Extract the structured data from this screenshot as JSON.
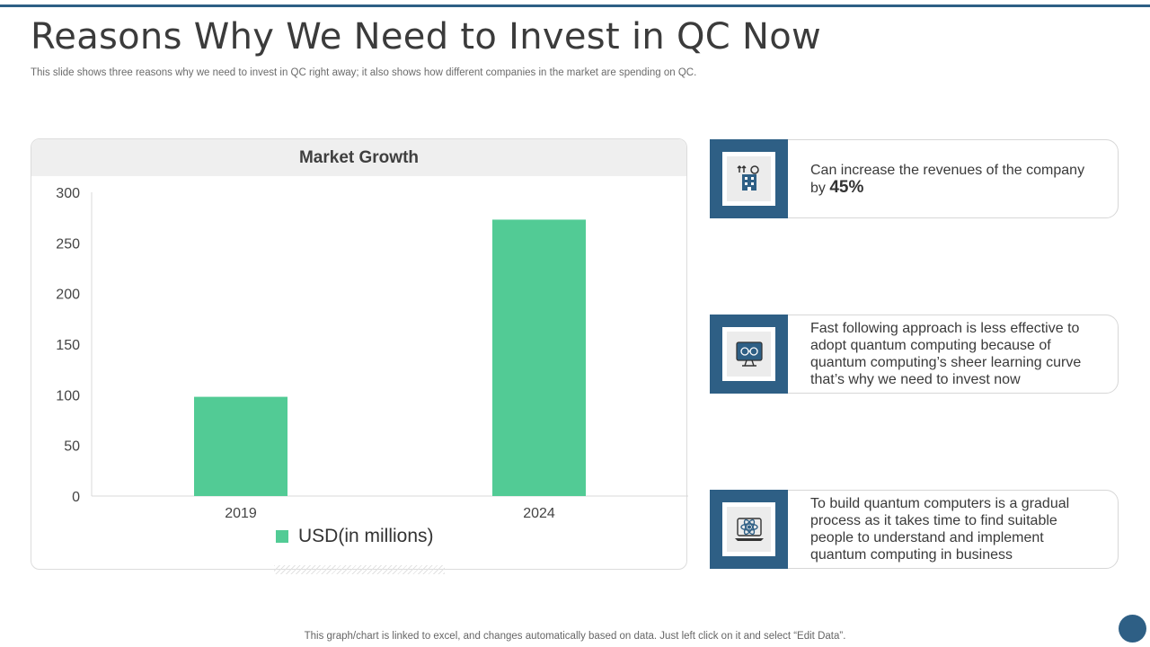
{
  "slide": {
    "title": "Reasons Why We Need to Invest in QC Now",
    "subtitle": "This slide shows three reasons why we need to invest in QC right away; it also shows how different companies in the market are spending on QC.",
    "footer_note": "This graph/chart is linked to excel, and changes automatically based on data. Just left click on it and select “Edit Data”."
  },
  "chart_data": {
    "type": "bar",
    "title": "Market Growth",
    "categories": [
      "2019",
      "2024"
    ],
    "series": [
      {
        "name": "USD(in millions)",
        "values": [
          98,
          273
        ],
        "color": "#52cb95"
      }
    ],
    "ylim": [
      0,
      300
    ],
    "yticks": [
      0,
      50,
      100,
      150,
      200,
      250,
      300
    ],
    "grid": false,
    "legend": "bottom"
  },
  "reasons": [
    {
      "icon": "revenue-building-icon",
      "text_before": "Can increase the revenues of the company by ",
      "highlight": "45%",
      "text_after": ""
    },
    {
      "icon": "quantum-computer-monitor-icon",
      "text_before": "Fast following approach is less effective to adopt quantum computing because of quantum computing’s sheer learning curve that’s why we need to invest now",
      "highlight": "",
      "text_after": ""
    },
    {
      "icon": "atom-laptop-icon",
      "text_before": "To build quantum computers is a gradual process as it takes time to find suitable people to understand and implement quantum computing in business",
      "highlight": "",
      "text_after": ""
    }
  ],
  "colors": {
    "accent": "#2e5f85",
    "bar": "#52cb95",
    "header_bg": "#efefef"
  }
}
